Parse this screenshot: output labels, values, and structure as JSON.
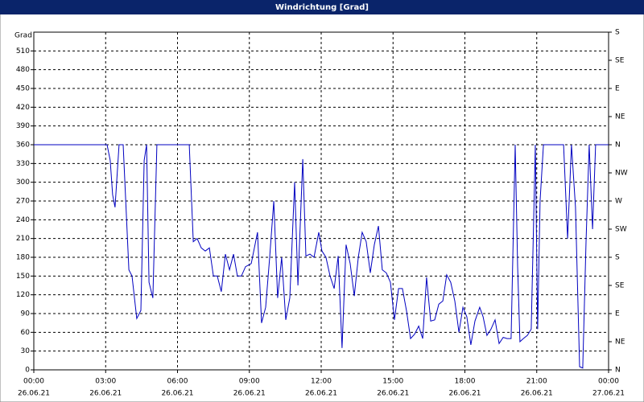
{
  "chart_data": {
    "type": "line",
    "title": "Windrichtung [Grad]",
    "y_label": "Grad",
    "color": "#0000c0",
    "grid": true,
    "xlim": [
      0,
      24
    ],
    "xticks": [
      {
        "value": 0,
        "label": "00:00"
      },
      {
        "value": 3,
        "label": "03:00"
      },
      {
        "value": 6,
        "label": "06:00"
      },
      {
        "value": 9,
        "label": "09:00"
      },
      {
        "value": 12,
        "label": "12:00"
      },
      {
        "value": 15,
        "label": "15:00"
      },
      {
        "value": 18,
        "label": "18:00"
      },
      {
        "value": 21,
        "label": "21:00"
      },
      {
        "value": 24,
        "label": "00:00"
      }
    ],
    "xtick_dates": [
      "26.06.21",
      "26.06.21",
      "26.06.21",
      "26.06.21",
      "26.06.21",
      "26.06.21",
      "26.06.21",
      "26.06.21",
      "27.06.21"
    ],
    "ylim": [
      0,
      540
    ],
    "yticks": [
      0,
      30,
      60,
      90,
      120,
      150,
      180,
      210,
      240,
      270,
      300,
      330,
      360,
      390,
      420,
      450,
      480,
      510
    ],
    "y2lim": [
      0,
      540
    ],
    "y2ticks": [
      {
        "value": 0,
        "label": "N"
      },
      {
        "value": 45,
        "label": "NE"
      },
      {
        "value": 90,
        "label": "E"
      },
      {
        "value": 135,
        "label": "SE"
      },
      {
        "value": 180,
        "label": "S"
      },
      {
        "value": 225,
        "label": "SW"
      },
      {
        "value": 270,
        "label": "W"
      },
      {
        "value": 315,
        "label": "NW"
      },
      {
        "value": 360,
        "label": "N"
      },
      {
        "value": 405,
        "label": "NE"
      },
      {
        "value": 450,
        "label": "E"
      },
      {
        "value": 495,
        "label": "SE"
      },
      {
        "value": 540,
        "label": "S"
      }
    ],
    "x": [
      0,
      3.06,
      3.19,
      3.29,
      3.39,
      3.56,
      3.73,
      3.97,
      4.1,
      4.3,
      4.47,
      4.61,
      4.71,
      4.81,
      4.97,
      5.14,
      6.49,
      6.66,
      6.82,
      6.99,
      7.16,
      7.33,
      7.5,
      7.66,
      7.83,
      8.0,
      8.17,
      8.34,
      8.5,
      8.67,
      8.84,
      9.08,
      9.34,
      9.51,
      9.68,
      9.85,
      10.02,
      10.18,
      10.35,
      10.52,
      10.69,
      10.89,
      11.03,
      11.23,
      11.36,
      11.53,
      11.7,
      11.9,
      12.03,
      12.2,
      12.37,
      12.54,
      12.71,
      12.87,
      13.04,
      13.21,
      13.38,
      13.55,
      13.71,
      13.88,
      14.05,
      14.22,
      14.39,
      14.55,
      14.72,
      14.89,
      15.06,
      15.23,
      15.39,
      15.56,
      15.73,
      15.9,
      16.07,
      16.24,
      16.4,
      16.57,
      16.74,
      16.91,
      17.08,
      17.24,
      17.41,
      17.58,
      17.75,
      17.92,
      18.08,
      18.25,
      18.42,
      18.62,
      18.76,
      18.92,
      19.09,
      19.26,
      19.43,
      19.6,
      19.76,
      19.93,
      20.1,
      20.2,
      20.3,
      20.44,
      20.61,
      20.77,
      20.94,
      21.04,
      21.14,
      21.28,
      22.12,
      22.29,
      22.45,
      22.62,
      22.79,
      22.92,
      23.06,
      23.19,
      23.33,
      23.46,
      24
    ],
    "values": [
      360,
      360,
      335,
      280,
      260,
      360,
      360,
      160,
      150,
      82,
      95,
      335,
      360,
      140,
      115,
      360,
      360,
      205,
      210,
      195,
      190,
      195,
      150,
      150,
      125,
      185,
      160,
      185,
      150,
      150,
      165,
      170,
      220,
      75,
      100,
      180,
      270,
      115,
      180,
      80,
      115,
      300,
      135,
      337,
      182,
      185,
      180,
      220,
      190,
      180,
      150,
      130,
      182,
      35,
      200,
      170,
      118,
      180,
      220,
      205,
      155,
      200,
      230,
      160,
      155,
      140,
      80,
      130,
      130,
      95,
      50,
      57,
      70,
      50,
      148,
      78,
      80,
      105,
      110,
      152,
      140,
      110,
      60,
      100,
      85,
      40,
      78,
      100,
      85,
      55,
      65,
      80,
      42,
      52,
      50,
      50,
      360,
      166,
      45,
      50,
      55,
      65,
      360,
      65,
      270,
      360,
      360,
      210,
      360,
      260,
      5,
      3,
      205,
      360,
      225,
      360,
      360
    ]
  }
}
